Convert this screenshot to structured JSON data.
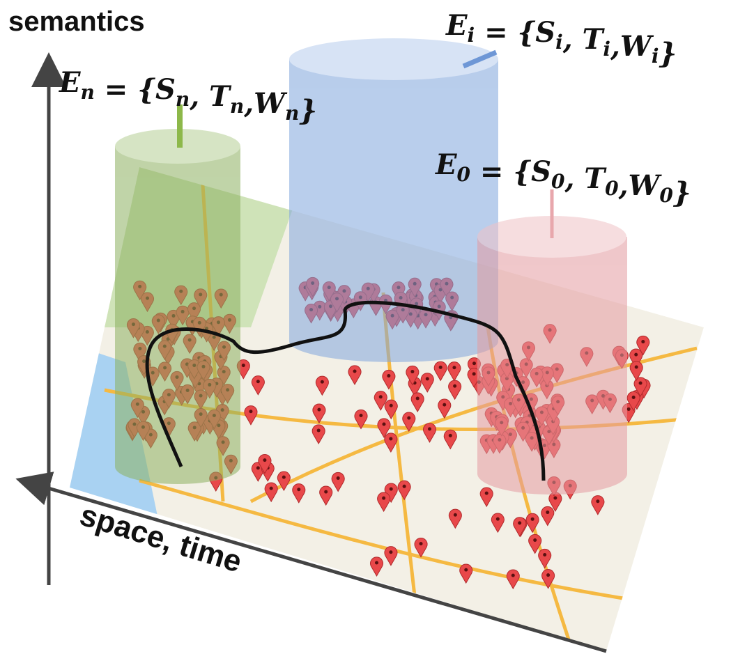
{
  "axes": {
    "vertical": "semantics",
    "horizontal": "space, time"
  },
  "events": [
    {
      "tokens": [
        {
          "text": "E",
          "sub": "n"
        },
        {
          "text": " = {"
        },
        {
          "text": "S",
          "sub": "n"
        },
        {
          "text": ", "
        },
        {
          "text": "T",
          "sub": "n"
        },
        {
          "text": ","
        },
        {
          "text": "W",
          "sub": "n"
        },
        {
          "text": "}"
        }
      ]
    },
    {
      "tokens": [
        {
          "text": "E",
          "sub": "i"
        },
        {
          "text": " = {"
        },
        {
          "text": "S",
          "sub": "i"
        },
        {
          "text": ", "
        },
        {
          "text": "T",
          "sub": "i"
        },
        {
          "text": ","
        },
        {
          "text": "W",
          "sub": "i"
        },
        {
          "text": "}"
        }
      ]
    },
    {
      "tokens": [
        {
          "text": "E",
          "sub": "0"
        },
        {
          "text": " = {"
        },
        {
          "text": "S",
          "sub": "0"
        },
        {
          "text": ", "
        },
        {
          "text": "T",
          "sub": "0"
        },
        {
          "text": ","
        },
        {
          "text": "W",
          "sub": "0"
        },
        {
          "text": "}"
        }
      ]
    }
  ]
}
